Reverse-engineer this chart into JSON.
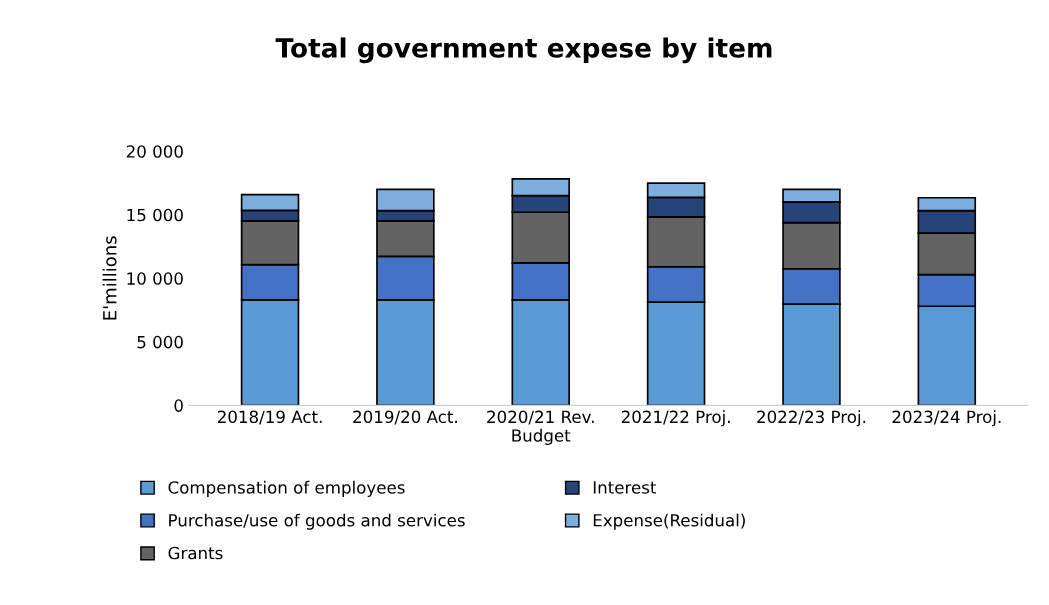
{
  "chart_data": {
    "type": "bar",
    "title": "Total government expese by item",
    "ylabel": "E'millions",
    "categories": [
      "2018/19 Act.",
      "2019/20 Act.",
      "2020/21 Rev.\nBudget",
      "2021/22 Proj.",
      "2022/23 Proj.",
      "2023/24 Proj."
    ],
    "stacked": true,
    "series": [
      {
        "name": "Compensation of employees",
        "color": "#5b9bd5",
        "values": [
          8300,
          8300,
          8300,
          8130,
          7970,
          7800
        ]
      },
      {
        "name": "Purchase/use of goods and services",
        "color": "#4472c4",
        "values": [
          2780,
          3430,
          2910,
          2780,
          2780,
          2490
        ]
      },
      {
        "name": "Grants",
        "color": "#636363",
        "values": [
          3440,
          2790,
          3990,
          3930,
          3630,
          3270
        ]
      },
      {
        "name": "Interest",
        "color": "#264478",
        "values": [
          820,
          810,
          1310,
          1530,
          1640,
          1770
        ]
      },
      {
        "name": "Expense(Residual)",
        "color": "#7cafdd",
        "values": [
          1250,
          1670,
          1310,
          1120,
          980,
          1010
        ]
      }
    ],
    "ylim": [
      0,
      20000
    ],
    "yticks": [
      {
        "value": 0,
        "label": "0"
      },
      {
        "value": 5000,
        "label": "5 000"
      },
      {
        "value": 10000,
        "label": "10 000"
      },
      {
        "value": 15000,
        "label": "15 000"
      },
      {
        "value": 20000,
        "label": "20 000"
      }
    ],
    "grid": false,
    "legend": "bottom"
  }
}
